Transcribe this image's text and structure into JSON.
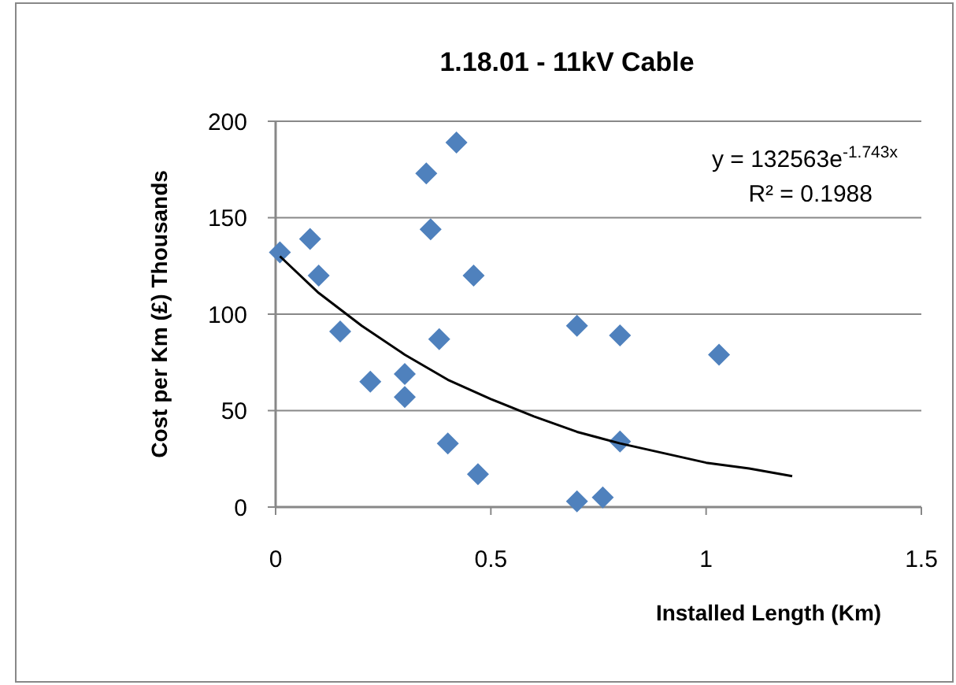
{
  "chart_data": {
    "type": "scatter",
    "title": "1.18.01 - 11kV Cable",
    "xlabel": "Installed Length (Km)",
    "ylabel": "Cost per Km (£) Thousands",
    "xlim": [
      0,
      1.5
    ],
    "xticks": [
      0,
      0.5,
      1,
      1.5
    ],
    "ylim": [
      0,
      200
    ],
    "yticks": [
      0,
      50,
      100,
      150,
      200
    ],
    "grid": "y",
    "marker": "diamond",
    "annotations": [
      "y = 132563e$^{-1.743x}$",
      "R² = 0.1988"
    ],
    "series": [
      {
        "color": "#4f81bd",
        "x": [
          0.01,
          0.08,
          0.1,
          0.15,
          0.22,
          0.3,
          0.3,
          0.35,
          0.36,
          0.42,
          0.38,
          0.46,
          0.4,
          0.47,
          0.7,
          0.8,
          1.03,
          0.8,
          0.7,
          0.76
        ],
        "values": [
          132,
          139,
          120,
          91,
          65,
          69,
          57,
          173,
          144,
          189,
          87,
          120,
          33,
          17,
          94,
          89,
          79,
          34,
          3,
          5
        ]
      },
      {
        "type": "line",
        "color": "#000000",
        "marker": "none",
        "x": [
          0.01,
          0.1,
          0.2,
          0.3,
          0.4,
          0.5,
          0.6,
          0.7,
          0.8,
          0.9,
          1.0,
          1.1,
          1.2
        ],
        "values": [
          130,
          111,
          94,
          79,
          66,
          56,
          47,
          39,
          33,
          28,
          23,
          20,
          16
        ]
      }
    ]
  }
}
